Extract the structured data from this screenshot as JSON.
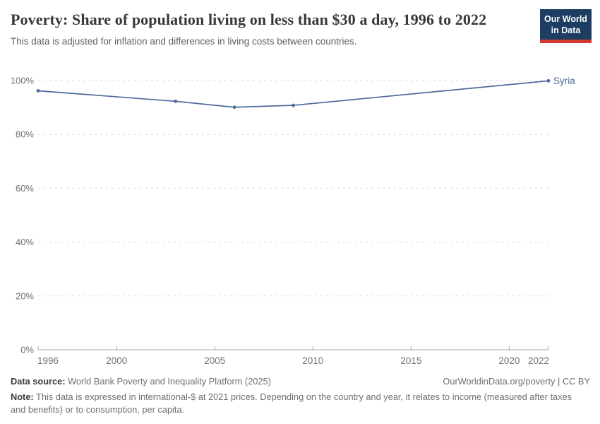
{
  "header": {
    "title": "Poverty: Share of population living on less than $30 a day, 1996 to 2022",
    "subtitle": "This data is adjusted for inflation and differences in living costs between countries.",
    "logo": {
      "line1": "Our World",
      "line2": "in Data",
      "bg_color": "#1D3D63",
      "bar_color": "#D3392D"
    }
  },
  "chart_data": {
    "type": "line",
    "title": "Poverty: Share of population living on less than $30 a day, 1996 to 2022",
    "entity": "Syria",
    "xlabel": "",
    "ylabel": "",
    "xlim": [
      1996,
      2022
    ],
    "ylim": [
      0,
      100
    ],
    "x_ticks": [
      1996,
      2000,
      2005,
      2010,
      2015,
      2020,
      2022
    ],
    "y_ticks": [
      0,
      20,
      40,
      60,
      80,
      100
    ],
    "y_tick_suffix": "%",
    "grid": "horizontal-dashed",
    "legend_position": "end-of-line",
    "axis_color": "#a7a7a7",
    "gridline_color": "#dadada",
    "tick_label_color": "#6e7275",
    "series": [
      {
        "name": "Syria",
        "color": "#4C6A9C",
        "x": [
          1996,
          2003,
          2006,
          2009,
          2022
        ],
        "values": [
          96.2,
          92.3,
          90.1,
          90.8,
          99.9
        ]
      }
    ]
  },
  "footer": {
    "datasource_label": "Data source:",
    "datasource_text": " World Bank Poverty and Inequality Platform (2025)",
    "license": "OurWorldinData.org/poverty | CC BY",
    "note_label": "Note:",
    "note_text": " This data is expressed in international-$ at 2021 prices. Depending on the country and year, it relates to income (measured after taxes and benefits) or to consumption, per capita."
  }
}
